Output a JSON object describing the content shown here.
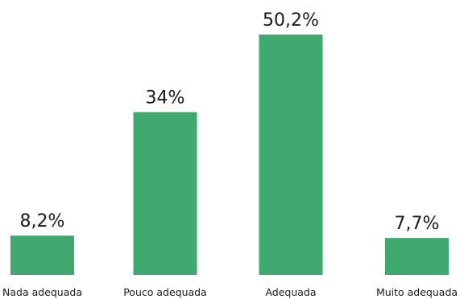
{
  "chart_data": {
    "type": "bar",
    "categories": [
      "Nada adequada",
      "Pouco adequada",
      "Adequada",
      "Muito adequada"
    ],
    "values": [
      8.2,
      34,
      50.2,
      7.7
    ],
    "value_labels": [
      "8,2%",
      "34%",
      "50,2%",
      "7,7%"
    ],
    "ylim": [
      0,
      50.2
    ],
    "grid": false,
    "legend": "none",
    "bar_color": "#3fa96f",
    "text_color": "#1a1a1a",
    "background": "#ffffff"
  }
}
